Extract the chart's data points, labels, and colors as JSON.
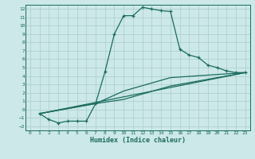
{
  "xlabel": "Humidex (Indice chaleur)",
  "bg_color": "#cce8e8",
  "grid_color": "#aacccc",
  "line_color": "#1a6b5e",
  "xlim": [
    -0.5,
    23.5
  ],
  "ylim": [
    -2.5,
    12.5
  ],
  "xticks": [
    0,
    1,
    2,
    3,
    4,
    5,
    6,
    7,
    8,
    9,
    10,
    11,
    12,
    13,
    14,
    15,
    16,
    17,
    18,
    19,
    20,
    21,
    22,
    23
  ],
  "yticks": [
    -2,
    -1,
    0,
    1,
    2,
    3,
    4,
    5,
    6,
    7,
    8,
    9,
    10,
    11,
    12
  ],
  "line1_x": [
    1,
    2,
    3,
    4,
    5,
    6,
    7,
    8,
    9,
    10,
    11,
    12,
    13,
    14,
    15,
    16,
    17,
    18,
    19,
    20,
    21,
    22,
    23
  ],
  "line1_y": [
    -0.5,
    -1.2,
    -1.6,
    -1.4,
    -1.4,
    -1.4,
    0.7,
    4.5,
    9.0,
    11.2,
    11.2,
    12.2,
    12.0,
    11.8,
    11.7,
    7.2,
    6.5,
    6.2,
    5.3,
    5.0,
    4.6,
    4.4,
    4.4
  ],
  "line2_x": [
    1,
    23
  ],
  "line2_y": [
    -0.5,
    4.4
  ],
  "line3_x": [
    1,
    7,
    10,
    15,
    23
  ],
  "line3_y": [
    -0.5,
    0.7,
    1.2,
    2.8,
    4.4
  ],
  "line4_x": [
    1,
    7,
    10,
    15,
    23
  ],
  "line4_y": [
    -0.5,
    0.7,
    2.2,
    3.8,
    4.4
  ]
}
